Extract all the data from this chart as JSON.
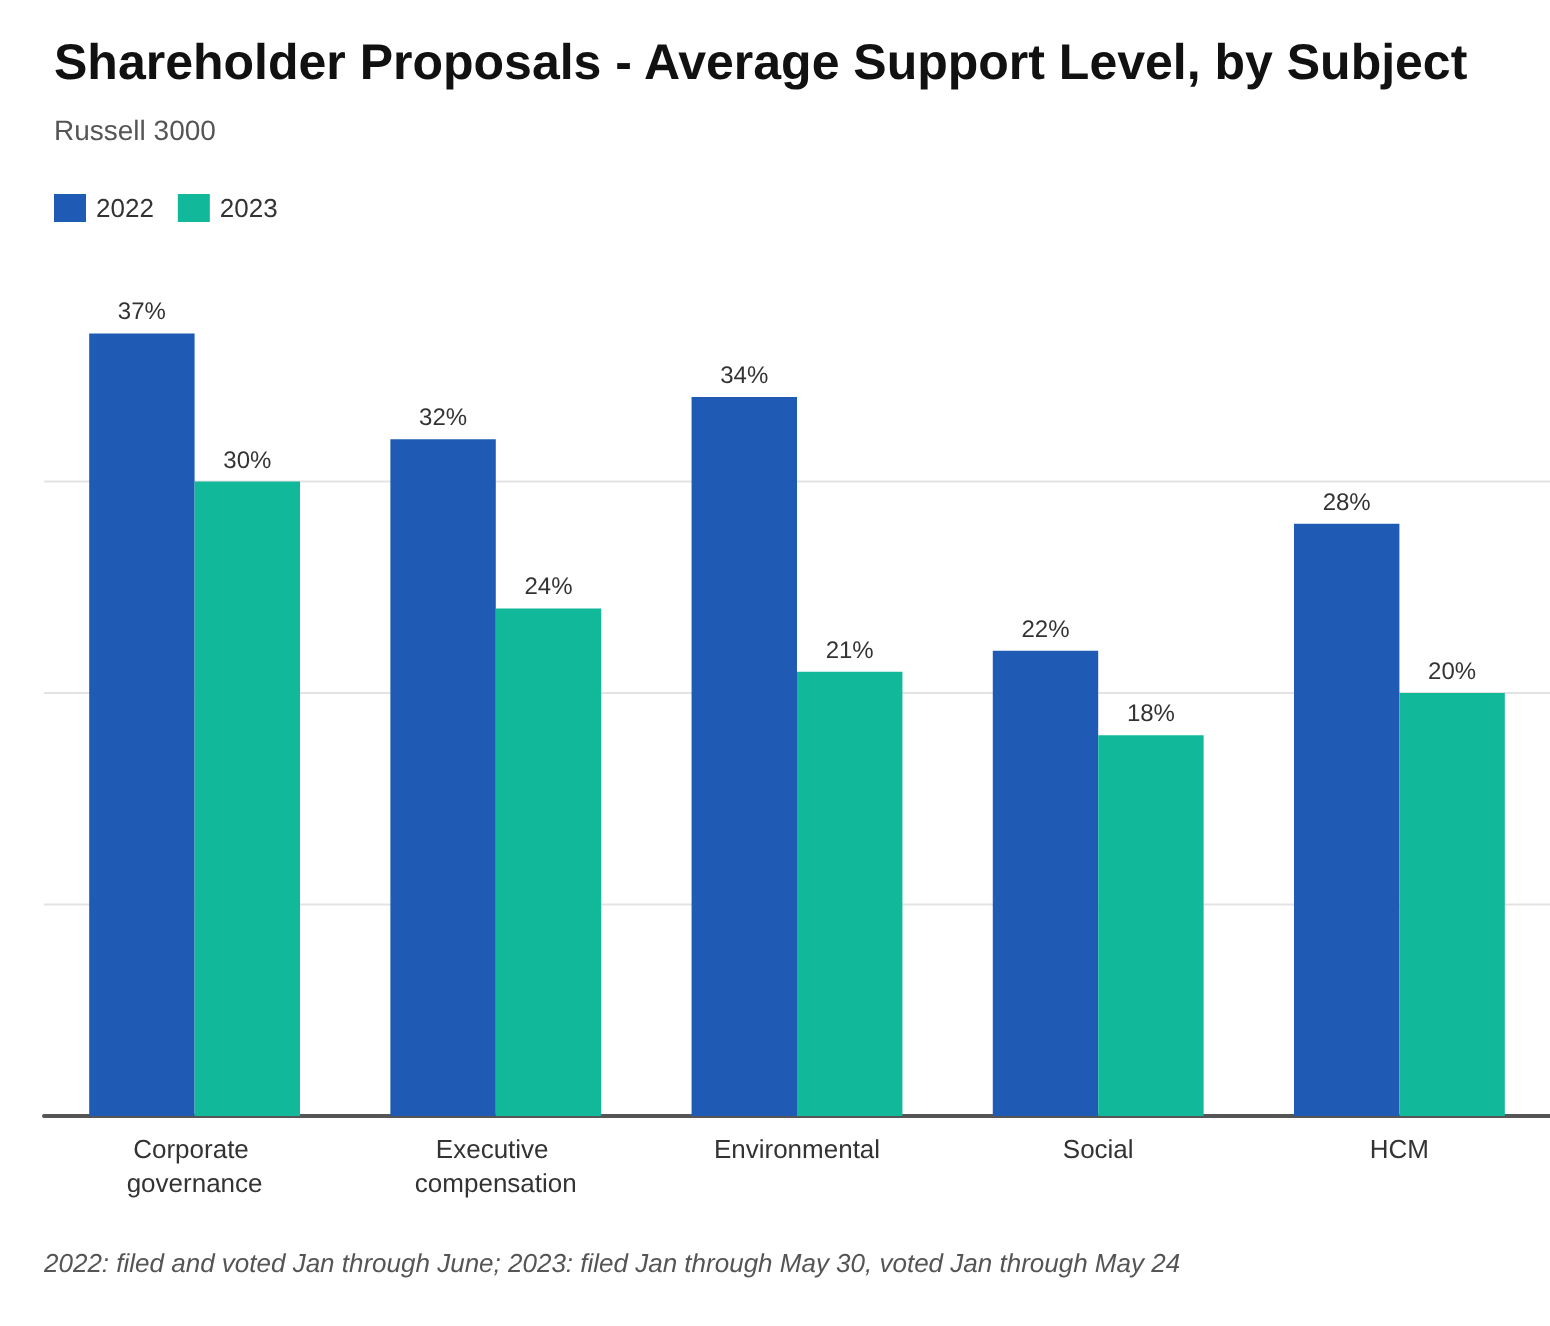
{
  "chart_data": {
    "type": "bar",
    "title": "Shareholder Proposals - Average Support Level, by Subject",
    "subtitle": "Russell 3000",
    "categories": [
      "Corporate governance",
      "Executive compensation",
      "Environmental",
      "Social",
      "HCM"
    ],
    "series": [
      {
        "name": "2022",
        "color": "#1f5bb5",
        "values": [
          37,
          32,
          34,
          22,
          28
        ],
        "value_labels": [
          "37%",
          "32%",
          "34%",
          "22%",
          "28%"
        ]
      },
      {
        "name": "2023",
        "color": "#12b89a",
        "values": [
          30,
          24,
          21,
          18,
          20
        ],
        "value_labels": [
          "30%",
          "24%",
          "21%",
          "18%",
          "20%"
        ]
      }
    ],
    "yticks": [
      {
        "value": 0,
        "label": null
      },
      {
        "value": 10,
        "label": null
      },
      {
        "value": 20,
        "label": null
      },
      {
        "value": 30,
        "label": null
      }
    ],
    "grid": "y",
    "legend": "top left",
    "tick_labels": "x",
    "annotations": [
      "2022: filed and voted Jan through June; 2023: filed Jan through May 30, voted Jan through May 24"
    ]
  }
}
